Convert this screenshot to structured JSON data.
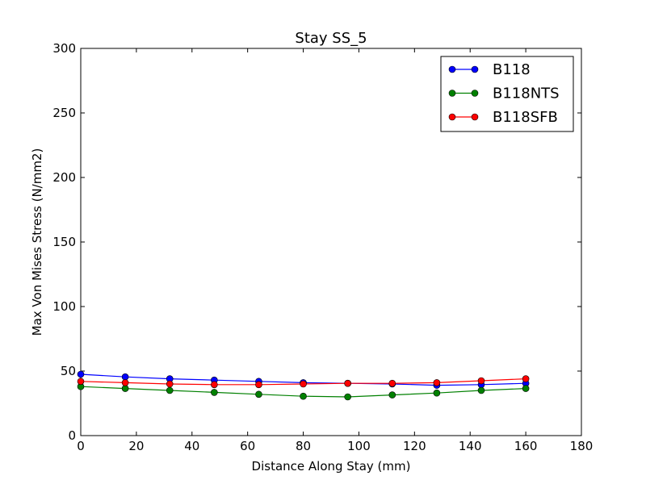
{
  "chart_data": {
    "type": "line",
    "title": "Stay SS_5",
    "xlabel": "Distance Along Stay (mm)",
    "ylabel": "Max Von Mises Stress (N/mm2)",
    "xlim": [
      0,
      180
    ],
    "ylim": [
      0,
      300
    ],
    "xticks": [
      "0",
      "20",
      "40",
      "60",
      "80",
      "100",
      "120",
      "140",
      "160",
      "180"
    ],
    "yticks": [
      "0",
      "50",
      "100",
      "150",
      "200",
      "250",
      "300"
    ],
    "grid": false,
    "legend_position": "top-right",
    "x": [
      0,
      16,
      32,
      48,
      64,
      80,
      96,
      112,
      128,
      144,
      160
    ],
    "series": [
      {
        "name": "B118",
        "color": "#0000ff",
        "values": [
          47.5,
          45.5,
          44,
          43,
          42,
          41,
          40.5,
          40,
          39,
          39.5,
          40.5
        ]
      },
      {
        "name": "B118NTS",
        "color": "#008000",
        "values": [
          38,
          36.5,
          35,
          33.5,
          32,
          30.5,
          30,
          31.5,
          33,
          35,
          36.5
        ]
      },
      {
        "name": "B118SFB",
        "color": "#ff0000",
        "values": [
          42,
          41,
          40,
          39.5,
          39.5,
          40,
          40.5,
          40.5,
          41,
          42.5,
          44
        ]
      }
    ]
  }
}
